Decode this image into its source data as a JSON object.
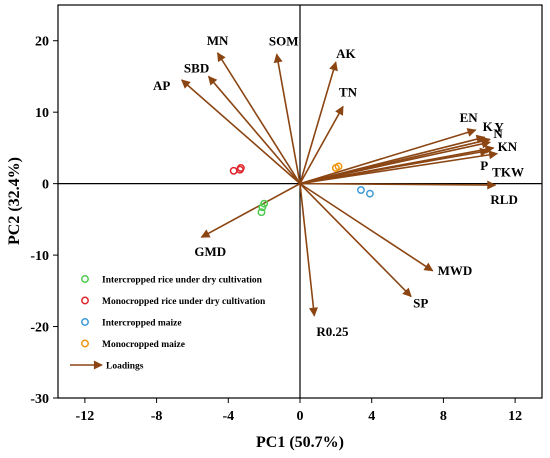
{
  "colors": {
    "loading_arrow": "#8B4513",
    "intercropped_rice": "#4CC94C",
    "monocropped_rice": "#E0242C",
    "intercropped_maize": "#3C9AD6",
    "monocropped_maize": "#F0950E"
  },
  "chart_data": {
    "type": "scatter",
    "subtype": "pca-biplot",
    "xlabel": "PC1 (50.7%)",
    "ylabel": "PC2 (32.4%)",
    "xlim": [
      -13.5,
      13.5
    ],
    "ylim": [
      -30,
      25
    ],
    "x_ticks": [
      -12,
      -8,
      -4,
      0,
      4,
      8,
      12
    ],
    "y_ticks": [
      -30,
      -20,
      -10,
      0,
      10,
      20
    ],
    "reference_lines": {
      "x": 0,
      "y": 0
    },
    "grid": false,
    "legend_position": "bottom-left",
    "series": [
      {
        "name": "Intercropped rice under dry cultivation",
        "color_key": "intercropped_rice",
        "points": [
          [
            -2.0,
            -2.8
          ],
          [
            -2.1,
            -3.3
          ],
          [
            -2.15,
            -4.0
          ]
        ]
      },
      {
        "name": "Monocropped rice under dry cultivation",
        "color_key": "monocropped_rice",
        "points": [
          [
            -3.7,
            1.8
          ],
          [
            -3.35,
            1.95
          ],
          [
            -3.3,
            2.2
          ]
        ]
      },
      {
        "name": "Intercropped maize",
        "color_key": "intercropped_maize",
        "points": [
          [
            3.4,
            -0.9
          ],
          [
            3.9,
            -1.4
          ]
        ]
      },
      {
        "name": "Monocropped maize",
        "color_key": "monocropped_maize",
        "points": [
          [
            2.0,
            2.2
          ],
          [
            2.15,
            2.4
          ]
        ]
      }
    ],
    "loadings_legend": "Loadings",
    "loadings": [
      {
        "label": "AP",
        "x": -6.6,
        "y": 14.5
      },
      {
        "label": "SBD",
        "x": -5.1,
        "y": 15.0
      },
      {
        "label": "MN",
        "x": -4.6,
        "y": 18.3
      },
      {
        "label": "SOM",
        "x": -1.3,
        "y": 18.1
      },
      {
        "label": "AK",
        "x": 2.0,
        "y": 17.0
      },
      {
        "label": "TN",
        "x": 2.4,
        "y": 10.8
      },
      {
        "label": "EN",
        "x": 9.8,
        "y": 7.5
      },
      {
        "label": "K",
        "x": 10.3,
        "y": 6.5
      },
      {
        "label": "Y",
        "x": 10.6,
        "y": 6.2
      },
      {
        "label": "N",
        "x": 10.6,
        "y": 5.8
      },
      {
        "label": "KN",
        "x": 10.8,
        "y": 5.0
      },
      {
        "label": "P",
        "x": 10.5,
        "y": 4.6
      },
      {
        "label": "TKW",
        "x": 11.0,
        "y": 4.2
      },
      {
        "label": "RLD",
        "x": 10.9,
        "y": -0.2
      },
      {
        "label": "MWD",
        "x": 7.4,
        "y": -12.2
      },
      {
        "label": "SP",
        "x": 6.2,
        "y": -15.8
      },
      {
        "label": "R0.25",
        "x": 0.8,
        "y": -18.5
      },
      {
        "label": "GMD",
        "x": -5.5,
        "y": -7.5
      }
    ]
  }
}
